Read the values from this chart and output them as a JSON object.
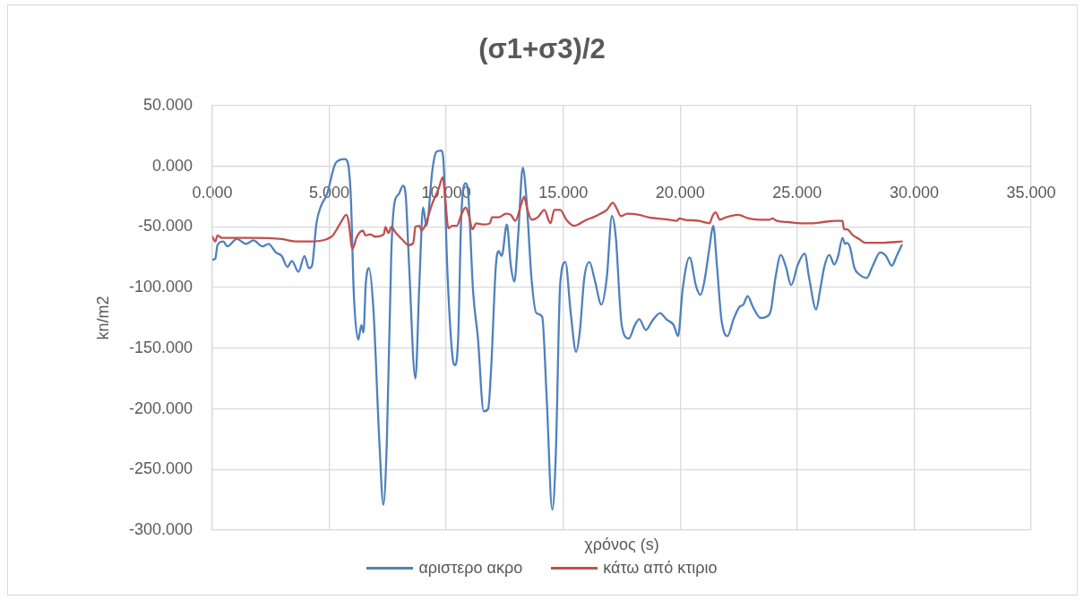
{
  "chart_data": {
    "type": "line",
    "title": "(σ1+σ3)/2",
    "xlabel": "χρόνος (s)",
    "ylabel": "kn/m2",
    "xlim": [
      0,
      35
    ],
    "xticks": [
      {
        "value": 0,
        "label": "0.000"
      },
      {
        "value": 5,
        "label": "5.000"
      },
      {
        "value": 10,
        "label": "10.000"
      },
      {
        "value": 15,
        "label": "15.000"
      },
      {
        "value": 20,
        "label": "20.000"
      },
      {
        "value": 25,
        "label": "25.000"
      },
      {
        "value": 30,
        "label": "30.000"
      },
      {
        "value": 35,
        "label": "35.000"
      }
    ],
    "ylim": [
      -300,
      50
    ],
    "yticks": [
      {
        "value": -300,
        "label": "-300.000"
      },
      {
        "value": -250,
        "label": "-250.000"
      },
      {
        "value": -200,
        "label": "-200.000"
      },
      {
        "value": -150,
        "label": "-150.000"
      },
      {
        "value": -100,
        "label": "-100.000"
      },
      {
        "value": -50,
        "label": "-50.000"
      },
      {
        "value": 0,
        "label": "0.000"
      },
      {
        "value": 50,
        "label": "50.000"
      }
    ],
    "grid": true,
    "legend": "bottom",
    "marker": "none",
    "line_style": "solid",
    "series": [
      {
        "name": "αριστερο ακρο",
        "color": "#4f81bd",
        "x": [
          0,
          0.13,
          0.22,
          0.47,
          0.64,
          1.05,
          1.44,
          1.76,
          2.14,
          2.4,
          2.72,
          2.97,
          3.21,
          3.4,
          3.68,
          3.94,
          4.13,
          4.26,
          4.45,
          4.64,
          4.9,
          5.28,
          5.67,
          5.79,
          5.92,
          6.05,
          6.24,
          6.37,
          6.46,
          6.56,
          6.69,
          6.88,
          7.14,
          7.31,
          7.46,
          7.65,
          7.78,
          7.97,
          8.15,
          8.27,
          8.4,
          8.68,
          8.85,
          9.01,
          9.15,
          9.42,
          9.58,
          9.78,
          9.87,
          10.06,
          10.26,
          10.38,
          10.51,
          10.64,
          10.83,
          10.94,
          11.15,
          11.35,
          11.6,
          11.79,
          11.92,
          12.12,
          12.24,
          12.37,
          12.59,
          12.76,
          12.91,
          13.08,
          13.27,
          13.42,
          13.65,
          13.85,
          14.1,
          14.29,
          14.53,
          14.68,
          14.87,
          15.09,
          15.32,
          15.55,
          15.71,
          15.9,
          16.12,
          16.35,
          16.63,
          16.86,
          17.08,
          17.24,
          17.5,
          17.8,
          18.06,
          18.25,
          18.53,
          18.82,
          19.14,
          19.4,
          19.72,
          19.91,
          20.1,
          20.4,
          20.68,
          20.87,
          21.04,
          21.25,
          21.41,
          21.57,
          21.76,
          22.02,
          22.28,
          22.53,
          22.7,
          22.88,
          23.11,
          23.43,
          23.68,
          23.87,
          24.07,
          24.3,
          24.52,
          24.74,
          25.03,
          25.32,
          25.51,
          25.81,
          25.98,
          26.17,
          26.37,
          26.59,
          26.75,
          26.94,
          27.04,
          27.13,
          27.26,
          27.45,
          27.65,
          27.97,
          28.23,
          28.55,
          28.8,
          29.04,
          29.25,
          29.47
        ],
        "values": [
          -77,
          -76,
          -65,
          -62,
          -66,
          -60,
          -64,
          -61,
          -66,
          -64,
          -71,
          -74,
          -83,
          -78,
          -87,
          -74,
          -84,
          -82,
          -47,
          -33,
          -23,
          3,
          6,
          3,
          -25,
          -106,
          -143,
          -131,
          -137,
          -97,
          -84,
          -116,
          -227,
          -279,
          -227,
          -72,
          -31,
          -23,
          -16,
          -25,
          -77,
          -175,
          -97,
          -34,
          -49,
          -1,
          12,
          13,
          7,
          -92,
          -156,
          -164,
          -141,
          -42,
          -14,
          -23,
          -104,
          -141,
          -202,
          -200,
          -166,
          -82,
          -70,
          -74,
          -48,
          -82,
          -95,
          -55,
          -1,
          -25,
          -94,
          -121,
          -124,
          -190,
          -283,
          -239,
          -97,
          -79,
          -121,
          -153,
          -136,
          -92,
          -79,
          -94,
          -114,
          -92,
          -41,
          -57,
          -131,
          -142,
          -131,
          -126,
          -135,
          -127,
          -121,
          -126,
          -131,
          -140,
          -102,
          -75,
          -99,
          -106,
          -94,
          -67,
          -49,
          -82,
          -126,
          -140,
          -126,
          -116,
          -114,
          -107,
          -116,
          -125,
          -124,
          -119,
          -92,
          -73,
          -83,
          -98,
          -81,
          -72,
          -92,
          -118,
          -102,
          -82,
          -73,
          -81,
          -74,
          -59,
          -64,
          -63,
          -67,
          -84,
          -89,
          -92,
          -82,
          -71,
          -74,
          -82,
          -74,
          -65
        ]
      },
      {
        "name": "κάτω από κτιριο",
        "color": "#c0504d",
        "x": [
          0,
          0.13,
          0.22,
          0.41,
          1.69,
          2.97,
          3.62,
          4.19,
          4.9,
          5.15,
          5.47,
          5.73,
          5.82,
          5.99,
          6.18,
          6.44,
          6.54,
          6.76,
          6.95,
          7.33,
          7.4,
          7.53,
          7.65,
          7.85,
          8.1,
          8.4,
          8.59,
          8.68,
          8.85,
          8.94,
          9.04,
          9.17,
          9.36,
          9.68,
          9.85,
          9.94,
          10.09,
          10.26,
          10.45,
          10.64,
          10.83,
          10.96,
          11.12,
          11.28,
          11.6,
          11.86,
          11.96,
          12.24,
          12.56,
          12.76,
          12.95,
          13.21,
          13.33,
          13.46,
          13.65,
          13.91,
          14.19,
          14.45,
          14.62,
          14.87,
          15.13,
          15.45,
          15.64,
          15.9,
          16.28,
          16.6,
          16.86,
          17.12,
          17.29,
          17.46,
          17.74,
          18.25,
          18.63,
          19.53,
          19.85,
          19.97,
          20.17,
          20.81,
          21.25,
          21.38,
          21.51,
          21.7,
          21.96,
          22.47,
          22.92,
          23.36,
          23.81,
          23.94,
          24.13,
          24.64,
          25.15,
          25.66,
          26.1,
          26.62,
          26.94,
          27,
          27.13,
          27.39,
          27.65,
          27.9,
          28.16,
          28.68,
          29.47
        ],
        "values": [
          -58,
          -62,
          -57,
          -59,
          -59,
          -60,
          -62,
          -62,
          -60,
          -57,
          -47,
          -40,
          -45,
          -68,
          -58,
          -53,
          -57,
          -56,
          -58,
          -56,
          -50,
          -55,
          -50,
          -55,
          -60,
          -65,
          -63,
          -50,
          -49,
          -53,
          -51,
          -45,
          -33,
          -18,
          -9,
          -23,
          -51,
          -49,
          -49,
          -40,
          -34,
          -40,
          -52,
          -47,
          -48,
          -47,
          -42,
          -42,
          -39,
          -40,
          -45,
          -31,
          -25,
          -35,
          -44,
          -42,
          -36,
          -47,
          -36,
          -36,
          -44,
          -49,
          -48,
          -45,
          -42,
          -39,
          -36,
          -30,
          -35,
          -41,
          -39,
          -40,
          -42,
          -44,
          -45,
          -43,
          -44,
          -45,
          -47,
          -41,
          -38,
          -44,
          -42,
          -40,
          -43,
          -44,
          -44,
          -43,
          -45,
          -46,
          -47,
          -47,
          -46,
          -45,
          -45,
          -52,
          -52,
          -57,
          -60,
          -63,
          -63,
          -63,
          -62
        ]
      }
    ]
  }
}
